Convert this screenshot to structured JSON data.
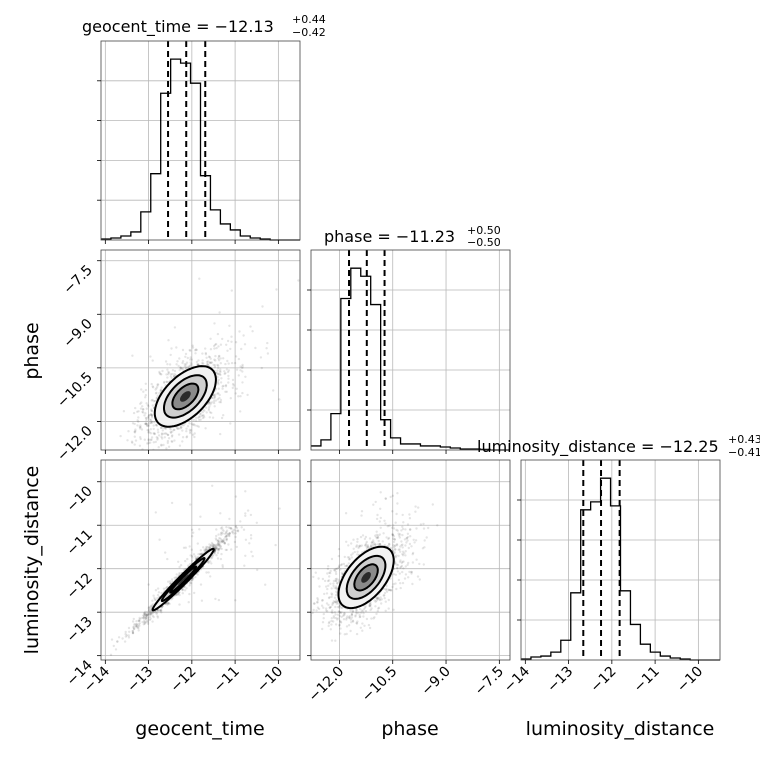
{
  "chart_data": {
    "type": "corner",
    "parameters": [
      "geocent_time",
      "phase",
      "luminosity_distance"
    ],
    "axis_labels": {
      "x": [
        "geocent_time",
        "phase",
        "luminosity_distance"
      ],
      "y": [
        "phase",
        "luminosity_distance"
      ]
    },
    "ranges": {
      "geocent_time": [
        -14.1,
        -9.5
      ],
      "phase": [
        -12.8,
        -7.2
      ],
      "luminosity_distance": [
        -14.1,
        -9.5
      ]
    },
    "ticks": {
      "geocent_time": [
        "−14",
        "−13",
        "−12",
        "−11",
        "−10"
      ],
      "phase": [
        "−12.0",
        "−10.5",
        "−9.0",
        "−7.5"
      ],
      "luminosity_distance": [
        "−14",
        "−13",
        "−12",
        "−11",
        "−10"
      ]
    },
    "tick_values": {
      "geocent_time": [
        -14,
        -13,
        -12,
        -11,
        -10
      ],
      "phase": [
        -12.0,
        -10.5,
        -9.0,
        -7.5
      ],
      "luminosity_distance": [
        -14,
        -13,
        -12,
        -11,
        -10
      ]
    },
    "titles": [
      {
        "name": "geocent_time",
        "median": "−12.13",
        "plus": "+0.44",
        "minus": "−0.42"
      },
      {
        "name": "phase",
        "median": "−11.23",
        "plus": "+0.50",
        "minus": "−0.50"
      },
      {
        "name": "luminosity_distance",
        "median": "−12.25",
        "plus": "+0.43",
        "minus": "−0.41"
      }
    ],
    "quantiles": {
      "geocent_time": [
        -12.55,
        -12.13,
        -11.69
      ],
      "phase": [
        -11.73,
        -11.23,
        -10.73
      ],
      "luminosity_distance": [
        -12.66,
        -12.25,
        -11.82
      ]
    },
    "histograms": {
      "geocent_time": {
        "edges": [
          -14.1,
          -13.87,
          -13.64,
          -13.41,
          -13.18,
          -12.95,
          -12.72,
          -12.49,
          -12.26,
          -12.03,
          -11.8,
          -11.57,
          -11.34,
          -11.11,
          -10.88,
          -10.65,
          -10.42,
          -10.19,
          -9.96,
          -9.73,
          -9.5
        ],
        "counts": [
          0.5,
          1,
          2,
          4,
          14,
          33,
          73,
          90,
          88,
          78,
          32,
          15,
          8,
          5,
          2,
          1,
          0.5,
          0,
          0,
          0
        ]
      },
      "phase": {
        "edges": [
          -12.8,
          -12.52,
          -12.24,
          -11.96,
          -11.68,
          -11.4,
          -11.12,
          -10.84,
          -10.56,
          -10.28,
          -10.0,
          -9.72,
          -9.44,
          -9.16,
          -8.88,
          -8.6,
          -8.32,
          -8.04,
          -7.76,
          -7.48,
          -7.2
        ],
        "counts": [
          2,
          5,
          18,
          75,
          90,
          86,
          72,
          15,
          6,
          3,
          3,
          2,
          2,
          1.5,
          1,
          0.5,
          0.5,
          0.3,
          0,
          0
        ]
      },
      "luminosity_distance": {
        "edges": [
          -14.1,
          -13.87,
          -13.64,
          -13.41,
          -13.18,
          -12.95,
          -12.72,
          -12.49,
          -12.26,
          -12.03,
          -11.8,
          -11.57,
          -11.34,
          -11.11,
          -10.88,
          -10.65,
          -10.42,
          -10.19,
          -9.96,
          -9.73,
          -9.5
        ],
        "counts": [
          0.5,
          1.5,
          2,
          4,
          10,
          34,
          76,
          80,
          92,
          78,
          35,
          18,
          8,
          4,
          2,
          1,
          0.5,
          0,
          0,
          0
        ]
      }
    },
    "pairs": [
      {
        "x": "geocent_time",
        "y": "phase",
        "center": [
          -12.15,
          -11.3
        ],
        "sigma": [
          0.5,
          0.6
        ],
        "rho": 0.55
      },
      {
        "x": "geocent_time",
        "y": "luminosity_distance",
        "center": [
          -12.2,
          -12.25
        ],
        "sigma": [
          0.5,
          0.5
        ],
        "rho": 0.98
      },
      {
        "x": "phase",
        "y": "luminosity_distance",
        "center": [
          -11.25,
          -12.2
        ],
        "sigma": [
          0.55,
          0.5
        ],
        "rho": 0.55
      }
    ],
    "grid": true
  }
}
